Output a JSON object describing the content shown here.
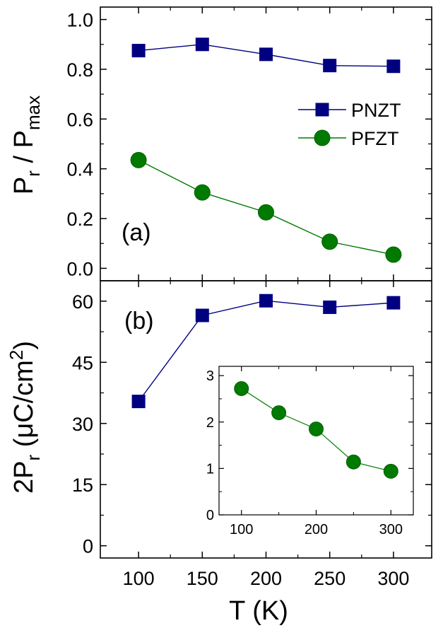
{
  "chart_data": [
    {
      "panel": "a",
      "type": "line",
      "panel_label": "(a)",
      "ylabel_main": "P",
      "ylabel_sub1": "r",
      "ylabel_mid": " / P",
      "ylabel_sub2": "max",
      "xlabel": "",
      "xlim": [
        70,
        330
      ],
      "ylim": [
        -0.05,
        1.05
      ],
      "yticks": [
        "0.0",
        "0.2",
        "0.4",
        "0.6",
        "0.8",
        "1.0"
      ],
      "ytick_values": [
        0,
        0.2,
        0.4,
        0.6,
        0.8,
        1.0
      ],
      "xticks": [
        100,
        150,
        200,
        250,
        300
      ],
      "legend_position": "right",
      "series": [
        {
          "name": "PNZT",
          "color": "#000080",
          "marker": "square",
          "x": [
            100,
            150,
            200,
            250,
            300
          ],
          "y": [
            0.875,
            0.9,
            0.86,
            0.815,
            0.812
          ]
        },
        {
          "name": "PFZT",
          "color": "#007a00",
          "marker": "circle",
          "x": [
            100,
            150,
            200,
            250,
            300
          ],
          "y": [
            0.435,
            0.305,
            0.225,
            0.107,
            0.055
          ]
        }
      ]
    },
    {
      "panel": "b",
      "type": "line",
      "panel_label": "(b)",
      "ylabel_pre": "2P",
      "ylabel_sub": "r",
      "ylabel_post": " (μC/cm",
      "ylabel_sup": "2",
      "ylabel_end": ")",
      "xlabel": "T (K)",
      "xlim": [
        70,
        330
      ],
      "ylim": [
        -3,
        65
      ],
      "yticks": [
        "0",
        "15",
        "30",
        "45",
        "60"
      ],
      "ytick_values": [
        0,
        15,
        30,
        45,
        60
      ],
      "xticks": [
        "100",
        "150",
        "200",
        "250",
        "300"
      ],
      "xtick_values": [
        100,
        150,
        200,
        250,
        300
      ],
      "series": [
        {
          "color": "#000080",
          "marker": "square",
          "x": [
            100,
            150,
            200,
            250,
            300
          ],
          "y": [
            35.4,
            56.5,
            60.1,
            58.5,
            59.6
          ]
        }
      ]
    },
    {
      "panel": "b-inset",
      "type": "line",
      "xlim": [
        70,
        330
      ],
      "ylim": [
        0,
        3.2
      ],
      "yticks": [
        "0",
        "1",
        "2",
        "3"
      ],
      "ytick_values": [
        0,
        1,
        2,
        3
      ],
      "xticks": [
        "100",
        "200",
        "300"
      ],
      "xtick_values": [
        100,
        200,
        300
      ],
      "series": [
        {
          "color": "#007a00",
          "marker": "circle",
          "x": [
            100,
            150,
            200,
            250,
            300
          ],
          "y": [
            2.72,
            2.2,
            1.85,
            1.14,
            0.94
          ]
        }
      ]
    }
  ]
}
